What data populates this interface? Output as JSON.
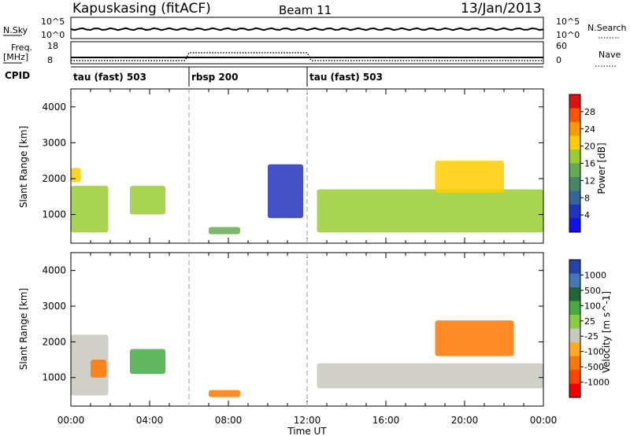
{
  "header": {
    "station": "Kapuskasing (fitACF)",
    "beam": "Beam 11",
    "date": "13/Jan/2013"
  },
  "strip_left": {
    "nsky": "N.Sky",
    "nsky_top": "10^5",
    "nsky_bottom": "10^0",
    "freq": "Freq.",
    "freq_unit": "[MHz]",
    "freq_top": "18",
    "freq_bottom": "8",
    "cpid": "CPID"
  },
  "strip_right": {
    "nsearch_top": "10^5",
    "nsearch_bottom": "10^0",
    "nsearch": "N.Search",
    "nave_top": "60",
    "nave_bottom": "0",
    "nave": "Nave"
  },
  "cpid_modes": [
    {
      "label": "tau (fast) 503",
      "start_hour": 0,
      "end_hour": 6
    },
    {
      "label": "rbsp 200",
      "start_hour": 6,
      "end_hour": 12
    },
    {
      "label": "tau (fast) 503",
      "start_hour": 12,
      "end_hour": 24
    }
  ],
  "colorbars": {
    "power": {
      "label": "Power [dB]",
      "ticks": [
        "28",
        "24",
        "20",
        "16",
        "12",
        "8",
        "4"
      ],
      "colors": [
        "#dd1111",
        "#ff5500",
        "#ff9900",
        "#ffcc00",
        "#99cc33",
        "#66aa55",
        "#448866",
        "#336699",
        "#2233bb",
        "#1111ee"
      ]
    },
    "velocity": {
      "label": "Velocity [m s^-1]",
      "ticks": [
        "1000",
        "500",
        "100",
        "25",
        "-25",
        "-100",
        "-500",
        "-1000"
      ],
      "colors": [
        "#2244aa",
        "#4477bb",
        "#226633",
        "#44aa44",
        "#88cc44",
        "#c8c8c0",
        "#ffaa22",
        "#ff7700",
        "#ff4400",
        "#ee0000"
      ]
    }
  },
  "chart_data": [
    {
      "type": "heatmap",
      "name": "power",
      "ylabel": "Slant Range [km]",
      "yticks": [
        "4000",
        "3000",
        "2000",
        "1000"
      ],
      "ylim": [
        200,
        4500
      ],
      "xlim": [
        0,
        24
      ],
      "regions": [
        {
          "t0": 0.0,
          "t1": 1.9,
          "r0": 500,
          "r1": 1800,
          "level": 18
        },
        {
          "t0": 0.0,
          "t1": 0.5,
          "r0": 1900,
          "r1": 2300,
          "level": 20
        },
        {
          "t0": 3.0,
          "t1": 4.8,
          "r0": 1000,
          "r1": 1800,
          "level": 18
        },
        {
          "t0": 7.0,
          "t1": 8.6,
          "r0": 450,
          "r1": 650,
          "level": 14
        },
        {
          "t0": 10.0,
          "t1": 11.8,
          "r0": 900,
          "r1": 2400,
          "level": 6
        },
        {
          "t0": 12.5,
          "t1": 24.0,
          "r0": 500,
          "r1": 1700,
          "level": 18
        },
        {
          "t0": 18.5,
          "t1": 22.0,
          "r0": 1600,
          "r1": 2500,
          "level": 20
        }
      ]
    },
    {
      "type": "heatmap",
      "name": "velocity",
      "ylabel": "Slant Range [km]",
      "yticks": [
        "4000",
        "3000",
        "2000",
        "1000"
      ],
      "ylim": [
        200,
        4500
      ],
      "xlim": [
        0,
        24
      ],
      "xticks": [
        "00:00",
        "04:00",
        "08:00",
        "12:00",
        "16:00",
        "20:00",
        "00:00"
      ],
      "xlabel": "Time UT",
      "regions": [
        {
          "t0": 0.0,
          "t1": 1.9,
          "r0": 500,
          "r1": 2200,
          "velocity": 20
        },
        {
          "t0": 1.0,
          "t1": 1.8,
          "r0": 1000,
          "r1": 1500,
          "velocity": -300
        },
        {
          "t0": 3.0,
          "t1": 4.8,
          "r0": 1100,
          "r1": 1800,
          "velocity": 80
        },
        {
          "t0": 7.0,
          "t1": 8.6,
          "r0": 450,
          "r1": 650,
          "velocity": -200
        },
        {
          "t0": 12.5,
          "t1": 24.0,
          "r0": 700,
          "r1": 1400,
          "velocity": 0
        },
        {
          "t0": 18.5,
          "t1": 22.5,
          "r0": 1600,
          "r1": 2600,
          "velocity": -200
        }
      ]
    }
  ]
}
